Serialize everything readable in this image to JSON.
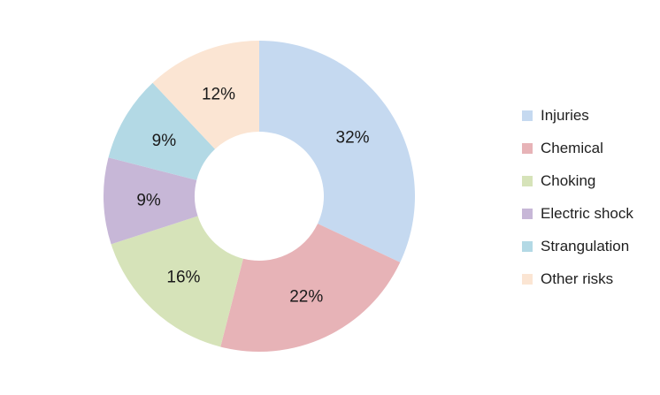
{
  "page": {
    "background": "#ffffff"
  },
  "chart_data": {
    "type": "pie",
    "subtype": "donut",
    "title": "",
    "categories": [
      "Injuries",
      "Chemical",
      "Choking",
      "Electric shock",
      "Strangulation",
      "Other risks"
    ],
    "values": [
      32,
      22,
      16,
      9,
      9,
      12
    ],
    "labels": [
      "32%",
      "22%",
      "16%",
      "9%",
      "9%",
      "12%"
    ],
    "colors": [
      "#c5d9f0",
      "#e7b3b7",
      "#d6e3b9",
      "#c7b7d7",
      "#b3d9e5",
      "#fbe5d3"
    ],
    "unit": "%",
    "legend_position": "right",
    "start_angle_deg": 0,
    "direction": "clockwise",
    "donut_hole_ratio": 0.415,
    "label_color": "#1a1a1a",
    "background": "#ffffff"
  }
}
